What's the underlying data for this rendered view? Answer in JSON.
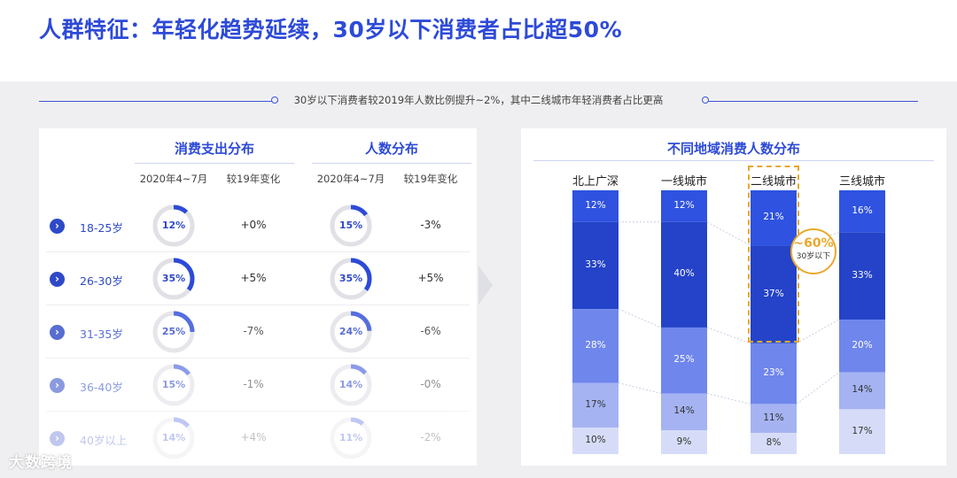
{
  "title": "人群特征：年轻化趋势延续，30岁以下消费者占比超50%",
  "subtitle": "30岁以下消费者较2019年人数比例提升~2%，其中二线城市年轻消费者占比更高",
  "left_panel": {
    "groups": [
      {
        "title": "消费支出分布",
        "col_period": "2020年4~7月",
        "col_change": "较19年变化"
      },
      {
        "title": "人数分布",
        "col_period": "2020年4~7月",
        "col_change": "较19年变化"
      }
    ],
    "rows": [
      {
        "age": "18-25岁",
        "spend_pct": "12%",
        "spend_value": 12,
        "spend_change": "+0%",
        "people_pct": "15%",
        "people_value": 15,
        "people_change": "-3%",
        "opacity": 1.0
      },
      {
        "age": "26-30岁",
        "spend_pct": "35%",
        "spend_value": 35,
        "spend_change": "+5%",
        "people_pct": "35%",
        "people_value": 35,
        "people_change": "+5%",
        "opacity": 1.0
      },
      {
        "age": "31-35岁",
        "spend_pct": "25%",
        "spend_value": 25,
        "spend_change": "-7%",
        "people_pct": "24%",
        "people_value": 24,
        "people_change": "-6%",
        "opacity": 0.8
      },
      {
        "age": "36-40岁",
        "spend_pct": "15%",
        "spend_value": 15,
        "spend_change": "-1%",
        "people_pct": "14%",
        "people_value": 14,
        "people_change": "-0%",
        "opacity": 0.55
      },
      {
        "age": "40岁以上",
        "spend_pct": "14%",
        "spend_value": 14,
        "spend_change": "+4%",
        "people_pct": "11%",
        "people_value": 11,
        "people_change": "-2%",
        "opacity": 0.3
      }
    ]
  },
  "chart_data": {
    "type": "bar",
    "stacked": true,
    "title": "不同地域消费人数分布",
    "categories": [
      "北上广深",
      "一线城市",
      "二线城市",
      "三线城市"
    ],
    "series_order": "top-to-bottom",
    "segments": [
      {
        "name": "",
        "color": "#2f52e0",
        "values": [
          12,
          12,
          21,
          16
        ]
      },
      {
        "name": "",
        "color": "#2443c8",
        "values": [
          33,
          40,
          37,
          33
        ]
      },
      {
        "name": "",
        "color": "#6f86ec",
        "values": [
          28,
          25,
          23,
          20
        ]
      },
      {
        "name": "",
        "color": "#a5b3f2",
        "values": [
          17,
          14,
          11,
          14
        ]
      },
      {
        "name": "",
        "color": "#d6dcf8",
        "values": [
          10,
          9,
          8,
          17
        ]
      }
    ],
    "highlight": {
      "category": "二线城市",
      "label": "~60%",
      "sublabel": "30岁以下"
    }
  },
  "watermark": "大数跨境",
  "colors": {
    "accent": "#2d4ad8",
    "highlight": "#e8a92d",
    "ring_track": "#e0e0e6"
  }
}
